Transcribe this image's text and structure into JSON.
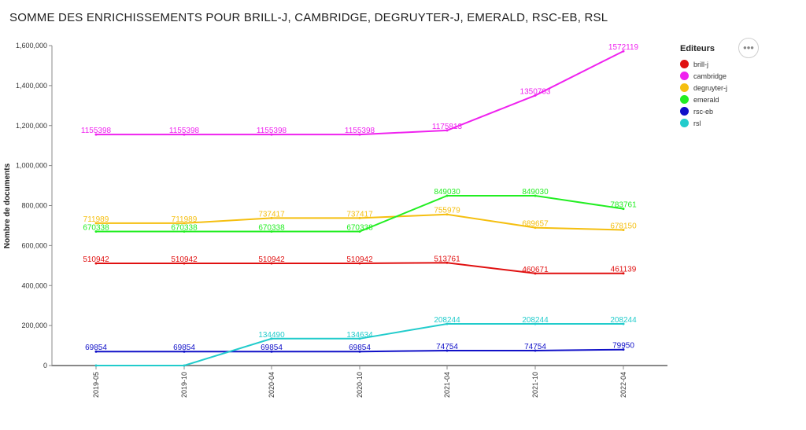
{
  "title": "SOMME DES ENRICHISSEMENTS POUR BRILL-J, CAMBRIDGE, DEGRUYTER-J, EMERALD, RSC-EB, RSL",
  "menu_icon": "more-horizontal-icon",
  "menu_glyph": "•••",
  "legend": {
    "title": "Editeurs",
    "items": [
      {
        "label": "brill-j",
        "color": "#e01010"
      },
      {
        "label": "cambridge",
        "color": "#ef22ef"
      },
      {
        "label": "degruyter-j",
        "color": "#f5bf10"
      },
      {
        "label": "emerald",
        "color": "#22ee22"
      },
      {
        "label": "rsc-eb",
        "color": "#1010c8"
      },
      {
        "label": "rsl",
        "color": "#22cccc"
      }
    ]
  },
  "chart_data": {
    "type": "line",
    "title": "SOMME DES ENRICHISSEMENTS POUR BRILL-J, CAMBRIDGE, DEGRUYTER-J, EMERALD, RSC-EB, RSL",
    "ylabel": "Nombre de documents",
    "xlabel": "",
    "categories": [
      "2019-05",
      "2019-10",
      "2020-04",
      "2020-10",
      "2021-04",
      "2021-10",
      "2022-04"
    ],
    "ylim": [
      0,
      1600000
    ],
    "yticks": [
      0,
      200000,
      400000,
      600000,
      800000,
      1000000,
      1200000,
      1400000,
      1600000
    ],
    "ytick_labels": [
      "0",
      "200,000",
      "400,000",
      "600,000",
      "800,000",
      "1,000,000",
      "1,200,000",
      "1,400,000",
      "1,600,000"
    ],
    "grid": false,
    "legend_position": "right",
    "series": [
      {
        "name": "brill-j",
        "color": "#e01010",
        "values": [
          510942,
          510942,
          510942,
          510942,
          513761,
          460671,
          461139
        ],
        "labels": [
          "510942",
          "510942",
          "510942",
          "510942",
          "513761",
          "460671",
          "461139"
        ]
      },
      {
        "name": "cambridge",
        "color": "#ef22ef",
        "values": [
          1155398,
          1155398,
          1155398,
          1155398,
          1175813,
          1350703,
          1572119
        ],
        "labels": [
          "1155398",
          "1155398",
          "1155398",
          "1155398",
          "1175813",
          "1350703",
          "1572119"
        ]
      },
      {
        "name": "degruyter-j",
        "color": "#f5bf10",
        "values": [
          711989,
          711989,
          737417,
          737417,
          755979,
          689657,
          678150
        ],
        "labels": [
          "711989",
          "711989",
          "737417",
          "737417",
          "755979",
          "689657",
          "678150"
        ]
      },
      {
        "name": "emerald",
        "color": "#22ee22",
        "values": [
          670338,
          670338,
          670338,
          670338,
          849030,
          849030,
          783761
        ],
        "labels": [
          "670338",
          "670338",
          "670338",
          "670338",
          "849030",
          "849030",
          "783761"
        ]
      },
      {
        "name": "rsc-eb",
        "color": "#1010c8",
        "values": [
          69854,
          69854,
          69854,
          69854,
          74754,
          74754,
          79950
        ],
        "labels": [
          "69854",
          "69854",
          "69854",
          "69854",
          "74754",
          "74754",
          "79950"
        ]
      },
      {
        "name": "rsl",
        "color": "#22cccc",
        "values": [
          0,
          0,
          134490,
          134634,
          208244,
          208244,
          208244
        ],
        "labels": [
          "",
          "",
          "134490",
          "134634",
          "208244",
          "208244",
          "208244"
        ]
      }
    ]
  }
}
